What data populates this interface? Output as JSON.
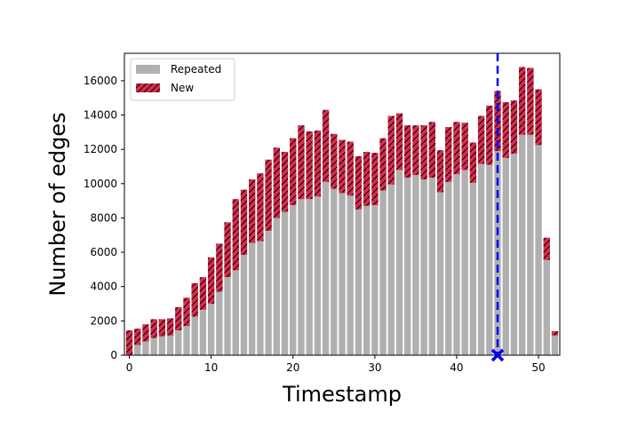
{
  "chart_data": {
    "type": "bar",
    "stacked": true,
    "xlabel": "Timestamp",
    "ylabel": "Number of edges",
    "xlim": [
      -0.6,
      52.6
    ],
    "ylim": [
      0,
      17600
    ],
    "xticks": [
      0,
      10,
      20,
      30,
      40,
      50
    ],
    "yticks": [
      0,
      2000,
      4000,
      6000,
      8000,
      10000,
      12000,
      14000,
      16000
    ],
    "x": [
      0,
      1,
      2,
      3,
      4,
      5,
      6,
      7,
      8,
      9,
      10,
      11,
      12,
      13,
      14,
      15,
      16,
      17,
      18,
      19,
      20,
      21,
      22,
      23,
      24,
      25,
      26,
      27,
      28,
      29,
      30,
      31,
      32,
      33,
      34,
      35,
      36,
      37,
      38,
      39,
      40,
      41,
      42,
      43,
      44,
      45,
      46,
      47,
      48,
      49,
      50,
      51,
      52
    ],
    "series": [
      {
        "name": "Repeated",
        "color": "#b0b0b0",
        "values": [
          0,
          600,
          800,
          1000,
          1100,
          1150,
          1450,
          1700,
          2250,
          2650,
          3000,
          3700,
          4550,
          4950,
          5850,
          6550,
          6650,
          7250,
          8000,
          8350,
          8750,
          9100,
          9100,
          9250,
          10100,
          9700,
          9450,
          9300,
          8500,
          8700,
          8750,
          9600,
          9950,
          10800,
          10350,
          10500,
          10250,
          10350,
          9500,
          10100,
          10550,
          10800,
          10050,
          11150,
          11100,
          11900,
          11500,
          11750,
          12850,
          12850,
          12250,
          5550,
          1150
        ]
      },
      {
        "name": "New",
        "color": "#d62c4b",
        "hatch": true,
        "values": [
          1450,
          950,
          1000,
          1100,
          1000,
          1000,
          1350,
          1650,
          1950,
          1900,
          2700,
          2800,
          3200,
          4150,
          3800,
          3700,
          3950,
          4150,
          4100,
          3500,
          3900,
          4300,
          3950,
          3850,
          4200,
          3200,
          3100,
          3150,
          3100,
          3150,
          3050,
          3050,
          4000,
          3300,
          3050,
          2900,
          3150,
          3250,
          2450,
          3200,
          3050,
          2750,
          2350,
          2800,
          3450,
          3500,
          3250,
          3100,
          3950,
          3900,
          3250,
          1300,
          250
        ]
      }
    ],
    "legend_position": "upper-left",
    "marker": {
      "x": 45,
      "line_color": "#0000ff",
      "line_style": "dashed",
      "symbol": "x"
    },
    "grid": false
  }
}
